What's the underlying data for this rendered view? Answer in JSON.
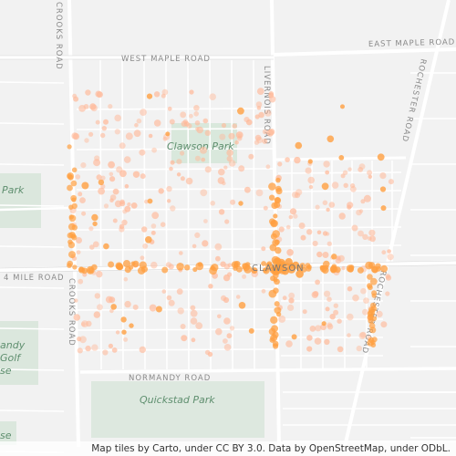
{
  "map": {
    "roads": {
      "west_maple": "WEST MAPLE ROAD",
      "east_maple": "EAST MAPLE ROAD",
      "crooks_north": "CROOKS ROAD",
      "crooks_south": "CROOKS ROAD",
      "livernois": "LIVERNOIS ROAD",
      "rochester_north": "ROCHESTER ROAD",
      "rochester_south": "ROCHESTER ROAD",
      "fourteen_mile": "4 MILE ROAD",
      "normandy": "NORMANDY ROAD"
    },
    "places": {
      "clawson_park": "Clawson Park",
      "quickstad_park": "Quickstad Park",
      "west_park": "Park",
      "city": "CLAWSON",
      "golf_line1": "andy",
      "golf_line2": "Golf",
      "golf_line3": "se",
      "bottom_left": "se"
    },
    "attribution": "Map tiles by Carto, under CC BY 3.0. Data by OpenStreetMap, under ODbL.",
    "colors": {
      "dot": "#ff9f40",
      "dot_pale": "#ffb999",
      "park": "#d9e8dc",
      "road": "#ffffff",
      "background": "#f2f2f2"
    }
  }
}
